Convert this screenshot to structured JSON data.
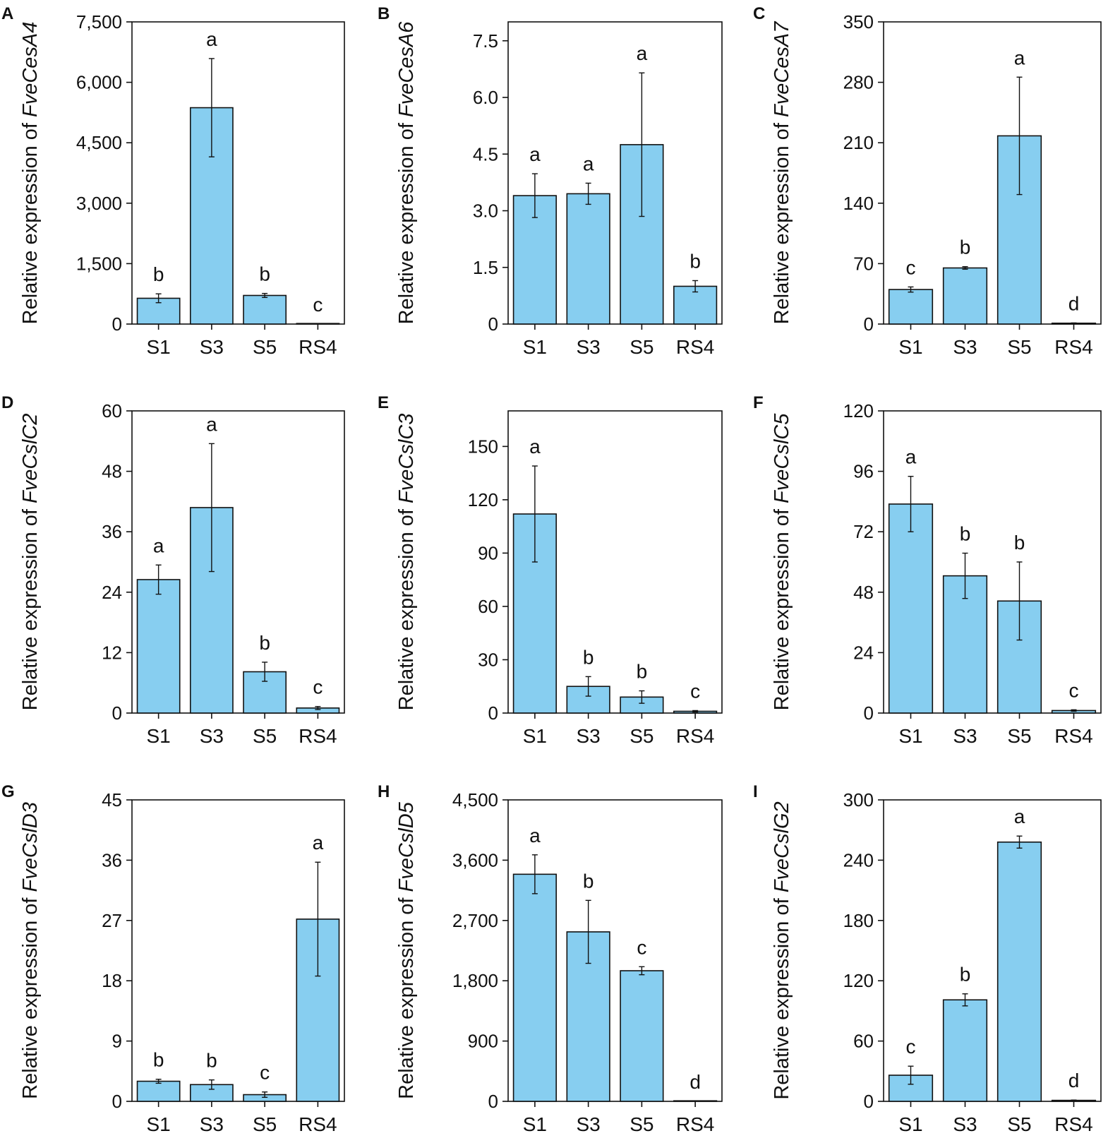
{
  "figure": {
    "y_label_prefix": "Relative expression of"
  },
  "chart_data": [
    {
      "panel": "A",
      "gene": "FveCesA4",
      "type": "bar",
      "ylabel": "Relative expression of FveCesA4",
      "categories": [
        "S1",
        "S3",
        "S5",
        "RS4"
      ],
      "values": [
        640,
        5370,
        710,
        0
      ],
      "errors": [
        110,
        1220,
        50,
        0
      ],
      "significance": [
        "b",
        "a",
        "b",
        "c"
      ],
      "ylim": [
        0,
        7500
      ],
      "yticks": [
        0,
        1500,
        3000,
        4500,
        6000,
        7500
      ],
      "ytick_labels": [
        "0",
        "1,500",
        "3,000",
        "4,500",
        "6,000",
        "7,500"
      ]
    },
    {
      "panel": "B",
      "gene": "FveCesA6",
      "type": "bar",
      "ylabel": "Relative expression of FveCesA6",
      "categories": [
        "S1",
        "S3",
        "S5",
        "RS4"
      ],
      "values": [
        3.4,
        3.45,
        4.75,
        1.0
      ],
      "errors": [
        0.58,
        0.28,
        1.9,
        0.15
      ],
      "significance": [
        "a",
        "a",
        "a",
        "b"
      ],
      "ylim": [
        0,
        8
      ],
      "yticks": [
        0,
        1.5,
        3.0,
        4.5,
        6.0,
        7.5
      ],
      "ytick_labels": [
        "0",
        "1.5",
        "3.0",
        "4.5",
        "6.0",
        "7.5"
      ]
    },
    {
      "panel": "C",
      "gene": "FveCesA7",
      "type": "bar",
      "ylabel": "Relative expression of FveCesA7",
      "categories": [
        "S1",
        "S3",
        "S5",
        "RS4"
      ],
      "values": [
        40,
        65,
        218,
        1
      ],
      "errors": [
        3,
        1.5,
        68,
        0.3
      ],
      "significance": [
        "c",
        "b",
        "a",
        "d"
      ],
      "ylim": [
        0,
        350
      ],
      "yticks": [
        0,
        70,
        140,
        210,
        280,
        350
      ],
      "ytick_labels": [
        "0",
        "70",
        "140",
        "210",
        "280",
        "350"
      ]
    },
    {
      "panel": "D",
      "gene": "FveCslC2",
      "type": "bar",
      "ylabel": "Relative expression of FveCslC2",
      "categories": [
        "S1",
        "S3",
        "S5",
        "RS4"
      ],
      "values": [
        26.5,
        40.8,
        8.2,
        1.0
      ],
      "errors": [
        2.9,
        12.7,
        1.9,
        0.3
      ],
      "significance": [
        "a",
        "a",
        "b",
        "c"
      ],
      "ylim": [
        0,
        60
      ],
      "yticks": [
        0,
        12,
        24,
        36,
        48,
        60
      ],
      "ytick_labels": [
        "0",
        "12",
        "24",
        "36",
        "48",
        "60"
      ]
    },
    {
      "panel": "E",
      "gene": "FveCslC3",
      "type": "bar",
      "ylabel": "Relative expression of FveCslC3",
      "categories": [
        "S1",
        "S3",
        "S5",
        "RS4"
      ],
      "values": [
        112,
        15,
        9,
        1
      ],
      "errors": [
        27,
        5.5,
        3.5,
        0.4
      ],
      "significance": [
        "a",
        "b",
        "b",
        "c"
      ],
      "ylim": [
        0,
        170
      ],
      "yticks": [
        0,
        30,
        60,
        90,
        120,
        150
      ],
      "ytick_labels": [
        "0",
        "30",
        "60",
        "90",
        "120",
        "150"
      ]
    },
    {
      "panel": "F",
      "gene": "FveCslC5",
      "type": "bar",
      "ylabel": "Relative expression of FveCslC5",
      "categories": [
        "S1",
        "S3",
        "S5",
        "RS4"
      ],
      "values": [
        83,
        54.5,
        44.5,
        1
      ],
      "errors": [
        11,
        9,
        15.5,
        0.3
      ],
      "significance": [
        "a",
        "b",
        "b",
        "c"
      ],
      "ylim": [
        0,
        120
      ],
      "yticks": [
        0,
        24,
        48,
        72,
        96,
        120
      ],
      "ytick_labels": [
        "0",
        "24",
        "48",
        "72",
        "96",
        "120"
      ]
    },
    {
      "panel": "G",
      "gene": "FveCslD3",
      "type": "bar",
      "ylabel": "Relative expression of FveCslD3",
      "categories": [
        "S1",
        "S3",
        "S5",
        "RS4"
      ],
      "values": [
        3.0,
        2.5,
        1.0,
        27.2
      ],
      "errors": [
        0.3,
        0.7,
        0.4,
        8.5
      ],
      "significance": [
        "b",
        "b",
        "c",
        "a"
      ],
      "ylim": [
        0,
        45
      ],
      "yticks": [
        0,
        9,
        18,
        27,
        36,
        45
      ],
      "ytick_labels": [
        "0",
        "9",
        "18",
        "27",
        "36",
        "45"
      ]
    },
    {
      "panel": "H",
      "gene": "FveCslD5",
      "type": "bar",
      "ylabel": "Relative expression of FveCslD5",
      "categories": [
        "S1",
        "S3",
        "S5",
        "RS4"
      ],
      "values": [
        3390,
        2530,
        1950,
        0
      ],
      "errors": [
        290,
        470,
        60,
        0
      ],
      "significance": [
        "a",
        "b",
        "c",
        "d"
      ],
      "ylim": [
        0,
        4500
      ],
      "yticks": [
        0,
        900,
        1800,
        2700,
        3600,
        4500
      ],
      "ytick_labels": [
        "0",
        "900",
        "1,800",
        "2,700",
        "3,600",
        "4,500"
      ]
    },
    {
      "panel": "I",
      "gene": "FveCslG2",
      "type": "bar",
      "ylabel": "Relative expression of FveCslG2",
      "categories": [
        "S1",
        "S3",
        "S5",
        "RS4"
      ],
      "values": [
        26,
        101,
        258,
        1
      ],
      "errors": [
        9,
        6,
        6,
        0.3
      ],
      "significance": [
        "c",
        "b",
        "a",
        "d"
      ],
      "ylim": [
        0,
        300
      ],
      "yticks": [
        0,
        60,
        120,
        180,
        240,
        300
      ],
      "ytick_labels": [
        "0",
        "60",
        "120",
        "180",
        "240",
        "300"
      ]
    }
  ]
}
